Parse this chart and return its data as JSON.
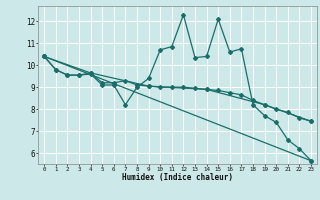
{
  "xlabel": "Humidex (Indice chaleur)",
  "xlim": [
    -0.5,
    23.5
  ],
  "ylim": [
    5.5,
    12.7
  ],
  "yticks": [
    6,
    7,
    8,
    9,
    10,
    11,
    12
  ],
  "xticks": [
    0,
    1,
    2,
    3,
    4,
    5,
    6,
    7,
    8,
    9,
    10,
    11,
    12,
    13,
    14,
    15,
    16,
    17,
    18,
    19,
    20,
    21,
    22,
    23
  ],
  "bg_color": "#cce8e8",
  "line_color": "#1a6e6a",
  "grid_color": "#ffffff",
  "lines": [
    {
      "x": [
        0,
        1,
        2,
        3,
        4,
        5,
        6,
        7,
        8,
        9,
        10,
        11,
        12,
        13,
        14,
        15,
        16,
        17,
        18,
        19,
        20,
        21,
        22,
        23
      ],
      "y": [
        10.4,
        9.8,
        9.55,
        9.55,
        9.6,
        9.1,
        9.1,
        8.2,
        9.0,
        9.4,
        10.7,
        10.85,
        12.3,
        10.35,
        10.4,
        12.1,
        10.6,
        10.75,
        8.2,
        7.7,
        7.4,
        6.6,
        6.2,
        5.65
      ]
    },
    {
      "x": [
        0,
        1,
        2,
        3,
        4,
        5,
        6,
        7,
        8,
        9,
        10,
        11,
        12,
        13,
        14,
        15,
        16,
        17,
        18,
        19,
        20,
        21,
        22,
        23
      ],
      "y": [
        10.4,
        9.8,
        9.55,
        9.55,
        9.65,
        9.2,
        9.2,
        9.3,
        9.1,
        9.05,
        9.0,
        9.0,
        9.0,
        8.95,
        8.9,
        8.85,
        8.75,
        8.65,
        8.4,
        8.2,
        8.0,
        7.85,
        7.6,
        7.45
      ]
    },
    {
      "x": [
        0,
        4,
        9,
        14,
        19,
        23
      ],
      "y": [
        10.4,
        9.65,
        9.05,
        8.9,
        8.2,
        7.45
      ]
    },
    {
      "x": [
        0,
        23
      ],
      "y": [
        10.4,
        5.65
      ]
    }
  ]
}
